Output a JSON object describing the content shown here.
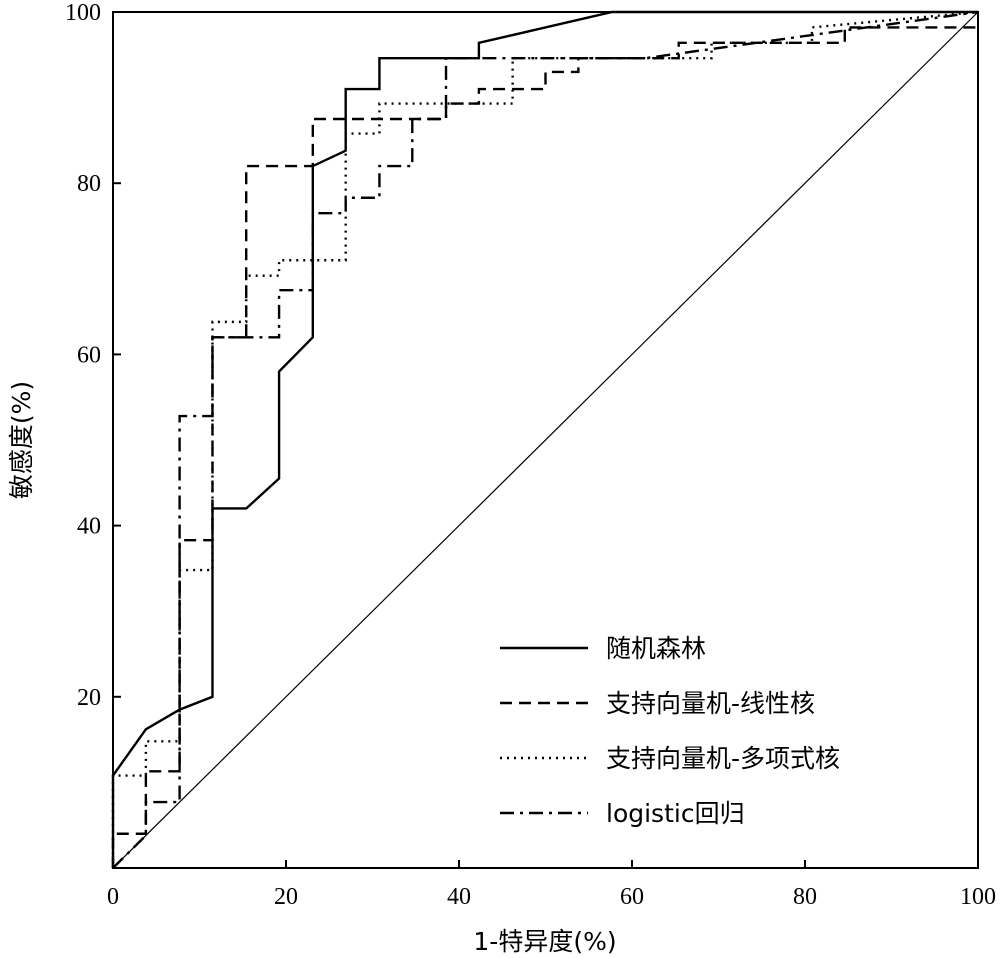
{
  "chart_data": {
    "type": "line",
    "xlabel": "1-特异度(%)",
    "ylabel": "敏感度(%)",
    "xlim": [
      0,
      100
    ],
    "ylim": [
      0,
      100
    ],
    "x_ticks": [
      "0",
      "20",
      "40",
      "60",
      "80",
      "100"
    ],
    "y_ticks": [
      "20",
      "40",
      "60",
      "80",
      "100"
    ],
    "grid": false,
    "legend_position": "bottom-right",
    "reference_line": {
      "from": [
        0,
        0
      ],
      "to": [
        100,
        100
      ],
      "style": "solid-thin"
    },
    "series": [
      {
        "name": "随机森林",
        "style": "solid",
        "x": [
          0,
          0,
          3.8,
          7.7,
          11.5,
          11.5,
          15.4,
          19.2,
          19.2,
          23.1,
          23.1,
          26.9,
          26.9,
          30.8,
          30.8,
          42.3,
          42.3,
          57.7,
          100
        ],
        "y": [
          0,
          10.8,
          16.2,
          18.5,
          20,
          42,
          42,
          45.5,
          58,
          62,
          82,
          83.8,
          91,
          91,
          94.6,
          94.6,
          96.4,
          100,
          100
        ]
      },
      {
        "name": "支持向量机-线性核",
        "style": "dashed",
        "x": [
          0,
          0,
          3.8,
          3.8,
          7.7,
          7.7,
          11.5,
          11.5,
          15.4,
          15.4,
          23.1,
          23.1,
          38.5,
          38.5,
          42.3,
          42.3,
          50,
          50,
          53.8,
          53.8,
          65.4,
          65.4,
          84.6,
          84.6,
          100
        ],
        "y": [
          0,
          4,
          4,
          11.3,
          11.3,
          38.3,
          38.3,
          62,
          62,
          82,
          82,
          87.5,
          87.5,
          89.3,
          89.3,
          91,
          91,
          93,
          93,
          94.6,
          94.6,
          96.4,
          96.4,
          98.2,
          98.2
        ]
      },
      {
        "name": "支持向量机-多项式核",
        "style": "dotted",
        "x": [
          0,
          0,
          3.8,
          3.8,
          7.7,
          7.7,
          11.5,
          11.5,
          15.4,
          15.4,
          19.2,
          19.2,
          26.9,
          26.9,
          30.8,
          30.8,
          34.6,
          34.6,
          46.2,
          46.2,
          69.2,
          69.2,
          80.8,
          80.8,
          100
        ],
        "y": [
          0,
          10.8,
          10.8,
          14.8,
          14.8,
          34.8,
          34.8,
          63.8,
          63.8,
          69.2,
          69.2,
          71,
          71,
          85.8,
          85.8,
          89.3,
          89.3,
          89.3,
          89.3,
          94.6,
          94.6,
          96.4,
          96.4,
          98.2,
          100
        ]
      },
      {
        "name": "logistic回归",
        "style": "dash-dot",
        "x": [
          0,
          3.8,
          3.8,
          7.7,
          7.7,
          11.5,
          11.5,
          15.4,
          19.2,
          19.2,
          23.1,
          23.1,
          26.9,
          26.9,
          30.8,
          30.8,
          34.6,
          34.6,
          38.5,
          38.5,
          46.2,
          46.2,
          61.5,
          100
        ],
        "y": [
          0,
          3.8,
          7.7,
          7.7,
          52.8,
          52.8,
          62,
          62,
          62,
          67.5,
          67.5,
          76.5,
          76.5,
          78.3,
          78.3,
          82,
          82,
          87.5,
          87.5,
          94.6,
          94.6,
          94.6,
          94.6,
          100
        ]
      }
    ]
  }
}
